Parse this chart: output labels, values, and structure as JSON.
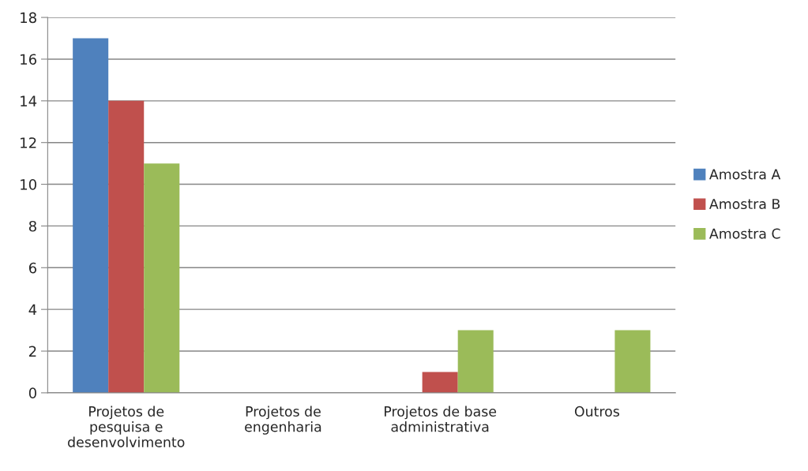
{
  "chart_data": {
    "type": "bar",
    "categories": [
      "Projetos de\npesquisa e\ndesenvolvimento",
      "Projetos de\nengenharia",
      "Projetos de base\nadministrativa",
      "Outros"
    ],
    "series": [
      {
        "name": "Amostra A",
        "color": "#4f81bd",
        "values": [
          17,
          0,
          0,
          0
        ]
      },
      {
        "name": "Amostra B",
        "color": "#c0504d",
        "values": [
          14,
          0,
          1,
          0
        ]
      },
      {
        "name": "Amostra C",
        "color": "#9bbb59",
        "values": [
          11,
          0,
          3,
          3
        ]
      }
    ],
    "ylim": [
      0,
      18
    ],
    "yticks": [
      0,
      2,
      4,
      6,
      8,
      10,
      12,
      14,
      16,
      18
    ],
    "grid": "y",
    "legend": "right"
  }
}
